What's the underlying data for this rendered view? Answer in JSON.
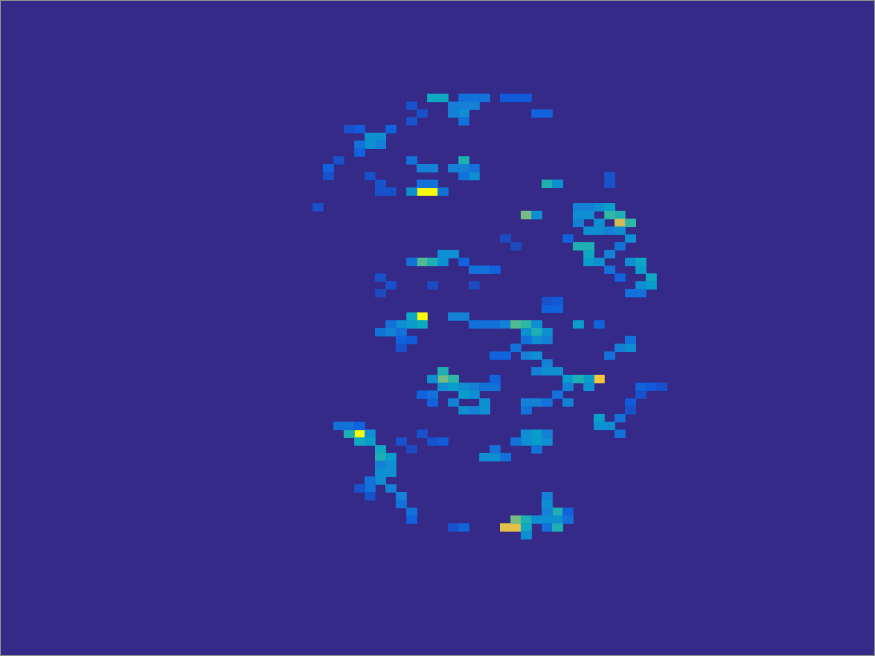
{
  "chart_data": {
    "type": "heatmap",
    "xlim": [
      0,
      84
    ],
    "ylim": [
      0,
      84
    ],
    "zlim": [
      0,
      1
    ],
    "tick_labels": false,
    "grid": false,
    "cells": [
      [
        41,
        12,
        0.4
      ],
      [
        42,
        12,
        0.4
      ],
      [
        44,
        12,
        0.2
      ],
      [
        45,
        12,
        0.2
      ],
      [
        46,
        12,
        0.2
      ],
      [
        48,
        12,
        0.12
      ],
      [
        49,
        12,
        0.12
      ],
      [
        50,
        12,
        0.12
      ],
      [
        43,
        13,
        0.25
      ],
      [
        44,
        13,
        0.25
      ],
      [
        45,
        13,
        0.25
      ],
      [
        39,
        13,
        0.1
      ],
      [
        51,
        14,
        0.15
      ],
      [
        52,
        14,
        0.15
      ],
      [
        44,
        14,
        0.3
      ],
      [
        43,
        14,
        0.25
      ],
      [
        44,
        15,
        0.2
      ],
      [
        40,
        14,
        0.1
      ],
      [
        39,
        15,
        0.1
      ],
      [
        35,
        17,
        0.3
      ],
      [
        36,
        17,
        0.3
      ],
      [
        35,
        18,
        0.3
      ],
      [
        36,
        18,
        0.25
      ],
      [
        34,
        18,
        0.2
      ],
      [
        34,
        19,
        0.15
      ],
      [
        33,
        16,
        0.1
      ],
      [
        37,
        16,
        0.15
      ],
      [
        34,
        16,
        0.12
      ],
      [
        31,
        21,
        0.15
      ],
      [
        31,
        22,
        0.1
      ],
      [
        32,
        20,
        0.1
      ],
      [
        44,
        20,
        0.45
      ],
      [
        43,
        21,
        0.25
      ],
      [
        44,
        21,
        0.25
      ],
      [
        45,
        22,
        0.3
      ],
      [
        44,
        22,
        0.2
      ],
      [
        45,
        21,
        0.2
      ],
      [
        39,
        20,
        0.2
      ],
      [
        40,
        21,
        0.25
      ],
      [
        41,
        21,
        0.25
      ],
      [
        40,
        24,
        1.0
      ],
      [
        41,
        24,
        1.0
      ],
      [
        39,
        24,
        0.3
      ],
      [
        40,
        23,
        0.2
      ],
      [
        41,
        23,
        0.2
      ],
      [
        42,
        24,
        0.2
      ],
      [
        35,
        22,
        0.1
      ],
      [
        36,
        23,
        0.1
      ],
      [
        37,
        24,
        0.1
      ],
      [
        36,
        24,
        0.1
      ],
      [
        52,
        23,
        0.45
      ],
      [
        53,
        23,
        0.3
      ],
      [
        58,
        22,
        0.1
      ],
      [
        58,
        23,
        0.1
      ],
      [
        50,
        27,
        0.6
      ],
      [
        51,
        27,
        0.3
      ],
      [
        55,
        26,
        0.25
      ],
      [
        56,
        26,
        0.25
      ],
      [
        57,
        26,
        0.3
      ],
      [
        58,
        26,
        0.35
      ],
      [
        59,
        27,
        0.45
      ],
      [
        58,
        27,
        0.5
      ],
      [
        59,
        28,
        0.75
      ],
      [
        60,
        28,
        0.5
      ],
      [
        57,
        28,
        0.3
      ],
      [
        55,
        27,
        0.3
      ],
      [
        56,
        27,
        0.3
      ],
      [
        55,
        28,
        0.25
      ],
      [
        56,
        29,
        0.3
      ],
      [
        57,
        29,
        0.3
      ],
      [
        58,
        29,
        0.25
      ],
      [
        59,
        29,
        0.3
      ],
      [
        60,
        30,
        0.3
      ],
      [
        56,
        31,
        0.45
      ],
      [
        55,
        31,
        0.45
      ],
      [
        56,
        32,
        0.4
      ],
      [
        56,
        33,
        0.35
      ],
      [
        57,
        33,
        0.3
      ],
      [
        58,
        32,
        0.25
      ],
      [
        59,
        31,
        0.2
      ],
      [
        60,
        33,
        0.3
      ],
      [
        61,
        33,
        0.4
      ],
      [
        61,
        34,
        0.35
      ],
      [
        62,
        35,
        0.4
      ],
      [
        62,
        36,
        0.35
      ],
      [
        61,
        36,
        0.3
      ],
      [
        60,
        37,
        0.2
      ],
      [
        61,
        37,
        0.2
      ],
      [
        54,
        30,
        0.15
      ],
      [
        58,
        34,
        0.2
      ],
      [
        59,
        35,
        0.15
      ],
      [
        40,
        33,
        0.55
      ],
      [
        41,
        33,
        0.45
      ],
      [
        42,
        32,
        0.3
      ],
      [
        43,
        32,
        0.3
      ],
      [
        42,
        33,
        0.3
      ],
      [
        39,
        33,
        0.2
      ],
      [
        45,
        34,
        0.2
      ],
      [
        46,
        34,
        0.2
      ],
      [
        47,
        34,
        0.15
      ],
      [
        44,
        33,
        0.15
      ],
      [
        36,
        35,
        0.1
      ],
      [
        37,
        36,
        0.1
      ],
      [
        36,
        37,
        0.08
      ],
      [
        41,
        36,
        0.08
      ],
      [
        45,
        36,
        0.08
      ],
      [
        48,
        30,
        0.08
      ],
      [
        49,
        31,
        0.08
      ],
      [
        40,
        40,
        1.0
      ],
      [
        39,
        40,
        0.4
      ],
      [
        39,
        41,
        0.35
      ],
      [
        40,
        41,
        0.4
      ],
      [
        38,
        41,
        0.3
      ],
      [
        37,
        41,
        0.2
      ],
      [
        36,
        42,
        0.2
      ],
      [
        37,
        42,
        0.25
      ],
      [
        38,
        42,
        0.2
      ],
      [
        38,
        43,
        0.15
      ],
      [
        39,
        43,
        0.12
      ],
      [
        38,
        44,
        0.1
      ],
      [
        43,
        40,
        0.25
      ],
      [
        44,
        40,
        0.25
      ],
      [
        45,
        41,
        0.2
      ],
      [
        46,
        41,
        0.2
      ],
      [
        47,
        41,
        0.2
      ],
      [
        48,
        41,
        0.25
      ],
      [
        49,
        41,
        0.55
      ],
      [
        50,
        41,
        0.5
      ],
      [
        51,
        41,
        0.3
      ],
      [
        50,
        42,
        0.3
      ],
      [
        51,
        42,
        0.45
      ],
      [
        52,
        42,
        0.3
      ],
      [
        51,
        43,
        0.3
      ],
      [
        52,
        43,
        0.25
      ],
      [
        50,
        43,
        0.2
      ],
      [
        52,
        39,
        0.15
      ],
      [
        53,
        39,
        0.15
      ],
      [
        52,
        38,
        0.1
      ],
      [
        53,
        38,
        0.12
      ],
      [
        55,
        41,
        0.35
      ],
      [
        57,
        41,
        0.15
      ],
      [
        59,
        44,
        0.25
      ],
      [
        60,
        44,
        0.3
      ],
      [
        60,
        43,
        0.2
      ],
      [
        58,
        45,
        0.2
      ],
      [
        47,
        45,
        0.15
      ],
      [
        48,
        45,
        0.15
      ],
      [
        49,
        44,
        0.2
      ],
      [
        50,
        45,
        0.25
      ],
      [
        51,
        45,
        0.3
      ],
      [
        52,
        46,
        0.25
      ],
      [
        51,
        47,
        0.25
      ],
      [
        52,
        47,
        0.3
      ],
      [
        53,
        47,
        0.3
      ],
      [
        54,
        48,
        0.35
      ],
      [
        57,
        48,
        0.85
      ],
      [
        56,
        48,
        0.35
      ],
      [
        55,
        48,
        0.45
      ],
      [
        56,
        49,
        0.3
      ],
      [
        54,
        49,
        0.25
      ],
      [
        61,
        49,
        0.15
      ],
      [
        62,
        49,
        0.12
      ],
      [
        61,
        50,
        0.1
      ],
      [
        60,
        51,
        0.12
      ],
      [
        60,
        52,
        0.1
      ],
      [
        63,
        49,
        0.1
      ],
      [
        42,
        48,
        0.6
      ],
      [
        42,
        47,
        0.45
      ],
      [
        43,
        48,
        0.5
      ],
      [
        41,
        48,
        0.3
      ],
      [
        42,
        49,
        0.3
      ],
      [
        43,
        49,
        0.35
      ],
      [
        44,
        49,
        0.3
      ],
      [
        45,
        49,
        0.25
      ],
      [
        44,
        50,
        0.35
      ],
      [
        45,
        50,
        0.3
      ],
      [
        46,
        51,
        0.3
      ],
      [
        45,
        52,
        0.25
      ],
      [
        44,
        52,
        0.3
      ],
      [
        46,
        52,
        0.3
      ],
      [
        43,
        51,
        0.25
      ],
      [
        40,
        50,
        0.15
      ],
      [
        41,
        50,
        0.2
      ],
      [
        41,
        51,
        0.15
      ],
      [
        46,
        49,
        0.2
      ],
      [
        47,
        49,
        0.2
      ],
      [
        47,
        48,
        0.15
      ],
      [
        50,
        51,
        0.25
      ],
      [
        51,
        51,
        0.25
      ],
      [
        52,
        51,
        0.2
      ],
      [
        50,
        52,
        0.2
      ],
      [
        53,
        50,
        0.2
      ],
      [
        54,
        51,
        0.25
      ],
      [
        57,
        53,
        0.35
      ],
      [
        57,
        54,
        0.3
      ],
      [
        58,
        54,
        0.3
      ],
      [
        59,
        53,
        0.2
      ],
      [
        59,
        55,
        0.2
      ],
      [
        50,
        55,
        0.3
      ],
      [
        51,
        55,
        0.35
      ],
      [
        52,
        56,
        0.3
      ],
      [
        50,
        56,
        0.3
      ],
      [
        51,
        56,
        0.35
      ],
      [
        49,
        56,
        0.2
      ],
      [
        52,
        55,
        0.25
      ],
      [
        51,
        57,
        0.2
      ],
      [
        46,
        58,
        0.3
      ],
      [
        47,
        58,
        0.3
      ],
      [
        47,
        57,
        0.2
      ],
      [
        48,
        58,
        0.2
      ],
      [
        40,
        55,
        0.1
      ],
      [
        41,
        56,
        0.1
      ],
      [
        42,
        56,
        0.12
      ],
      [
        34,
        55,
        1.0
      ],
      [
        33,
        55,
        0.45
      ],
      [
        34,
        56,
        0.4
      ],
      [
        35,
        55,
        0.3
      ],
      [
        32,
        54,
        0.2
      ],
      [
        33,
        54,
        0.2
      ],
      [
        34,
        54,
        0.15
      ],
      [
        35,
        56,
        0.35
      ],
      [
        36,
        57,
        0.4
      ],
      [
        36,
        58,
        0.45
      ],
      [
        37,
        58,
        0.35
      ],
      [
        37,
        59,
        0.3
      ],
      [
        36,
        59,
        0.25
      ],
      [
        36,
        60,
        0.3
      ],
      [
        37,
        60,
        0.3
      ],
      [
        36,
        61,
        0.3
      ],
      [
        35,
        61,
        0.2
      ],
      [
        35,
        62,
        0.2
      ],
      [
        37,
        62,
        0.25
      ],
      [
        38,
        63,
        0.25
      ],
      [
        38,
        64,
        0.2
      ],
      [
        39,
        65,
        0.2
      ],
      [
        39,
        66,
        0.15
      ],
      [
        34,
        62,
        0.1
      ],
      [
        35,
        63,
        0.1
      ],
      [
        38,
        56,
        0.1
      ],
      [
        39,
        57,
        0.08
      ],
      [
        52,
        63,
        0.25
      ],
      [
        52,
        64,
        0.3
      ],
      [
        53,
        65,
        0.45
      ],
      [
        52,
        65,
        0.25
      ],
      [
        54,
        65,
        0.15
      ],
      [
        53,
        66,
        0.3
      ],
      [
        52,
        66,
        0.3
      ],
      [
        48,
        67,
        0.8
      ],
      [
        49,
        67,
        0.8
      ],
      [
        49,
        66,
        0.6
      ],
      [
        50,
        66,
        0.45
      ],
      [
        50,
        67,
        0.4
      ],
      [
        51,
        66,
        0.3
      ],
      [
        52,
        67,
        0.2
      ],
      [
        53,
        67,
        0.45
      ],
      [
        54,
        66,
        0.2
      ],
      [
        50,
        68,
        0.3
      ],
      [
        44,
        67,
        0.15
      ],
      [
        43,
        67,
        0.1
      ],
      [
        30,
        26,
        0.1
      ]
    ]
  }
}
